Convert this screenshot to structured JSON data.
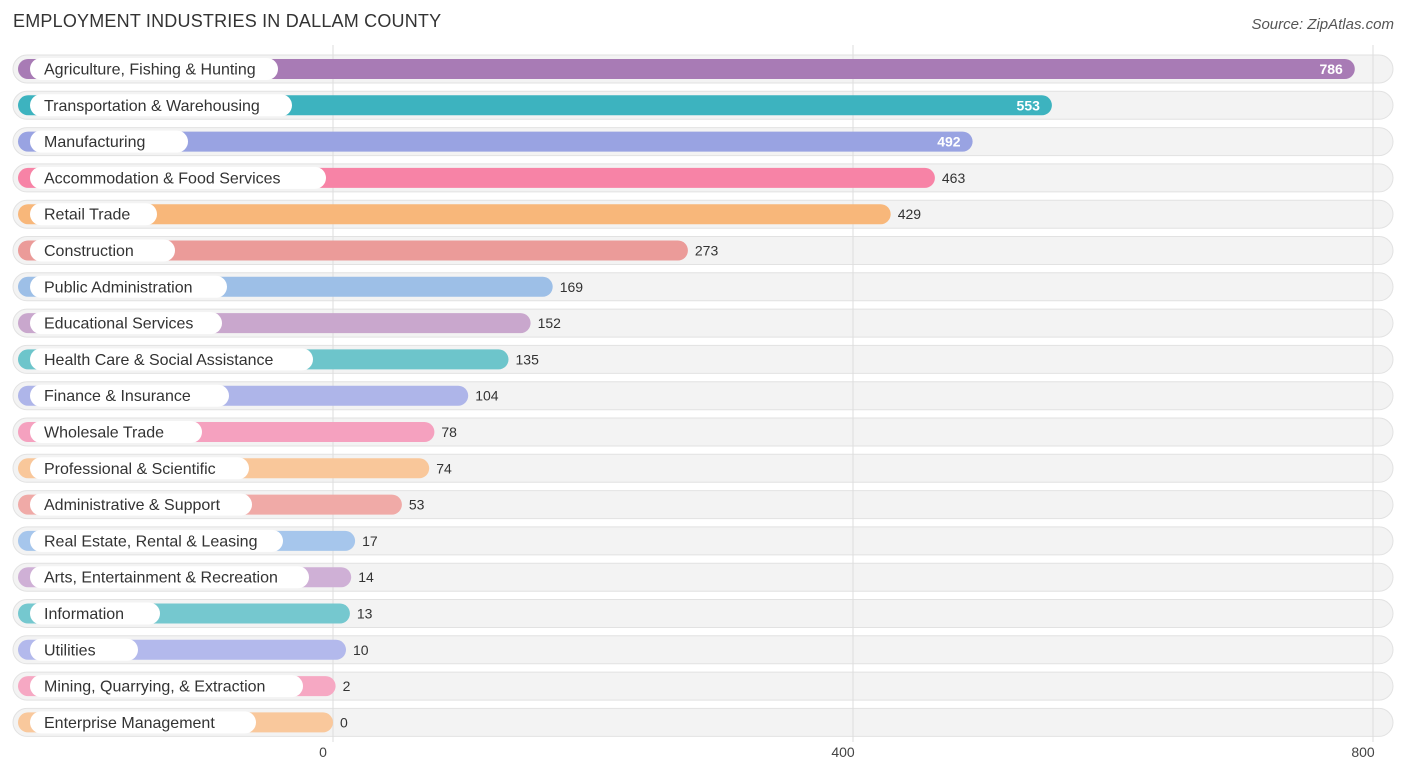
{
  "title": "EMPLOYMENT INDUSTRIES IN DALLAM COUNTY",
  "source": "Source: ZipAtlas.com",
  "chart_data": {
    "type": "bar",
    "orientation": "horizontal",
    "title": "EMPLOYMENT INDUSTRIES IN DALLAM COUNTY",
    "xlabel": "",
    "ylabel": "",
    "xlim": [
      0,
      800
    ],
    "ticks": [
      0,
      400,
      800
    ],
    "grid": true,
    "categories": [
      "Agriculture, Fishing & Hunting",
      "Transportation & Warehousing",
      "Manufacturing",
      "Accommodation & Food Services",
      "Retail Trade",
      "Construction",
      "Public Administration",
      "Educational Services",
      "Health Care & Social Assistance",
      "Finance & Insurance",
      "Wholesale Trade",
      "Professional & Scientific",
      "Administrative & Support",
      "Real Estate, Rental & Leasing",
      "Arts, Entertainment & Recreation",
      "Information",
      "Utilities",
      "Mining, Quarrying, & Extraction",
      "Enterprise Management"
    ],
    "values": [
      786,
      553,
      492,
      463,
      429,
      273,
      169,
      152,
      135,
      104,
      78,
      74,
      53,
      17,
      14,
      13,
      10,
      2,
      0
    ],
    "colors": [
      "#a87bb5",
      "#3db3bf",
      "#99a3e2",
      "#f783a6",
      "#f8b77a",
      "#eb9b99",
      "#9dbfe7",
      "#c9a7cd",
      "#6dc5cb",
      "#aeb5e9",
      "#f5a1bf",
      "#f9c79a",
      "#f0aaa7",
      "#a6c6ec",
      "#cfb0d6",
      "#75c8cf",
      "#b3b9ec",
      "#f6a8c3",
      "#f9c89c"
    ]
  }
}
